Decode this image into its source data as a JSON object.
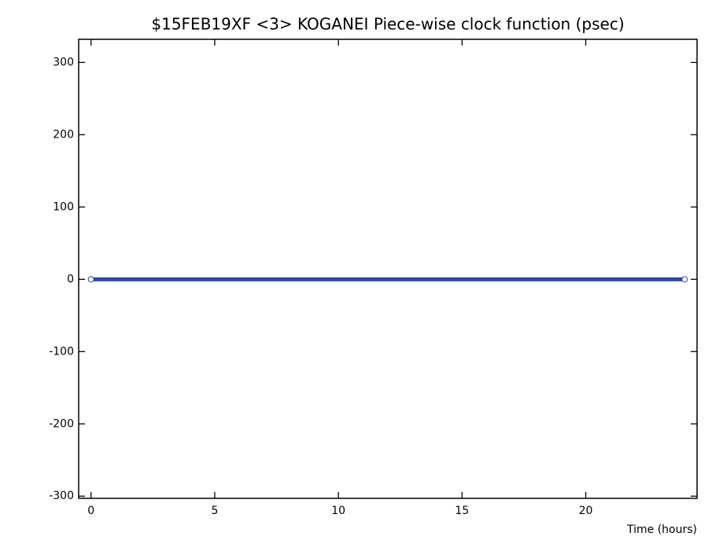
{
  "chart_data": {
    "type": "line",
    "title": "$15FEB19XF <3>  KOGANEI   Piece-wise clock function (psec)",
    "x_label": "Time (hours)",
    "x": [
      0,
      24
    ],
    "series": [
      {
        "color": "#2b47b3",
        "values": [
          0,
          0
        ]
      }
    ],
    "xlim": [
      -0.5,
      24.5
    ],
    "xticks": [
      0,
      5,
      10,
      15,
      20
    ],
    "ylim": [
      -303,
      332
    ],
    "yticks": [
      -300,
      -200,
      -100,
      0,
      100,
      200,
      300
    ],
    "markers": true
  }
}
